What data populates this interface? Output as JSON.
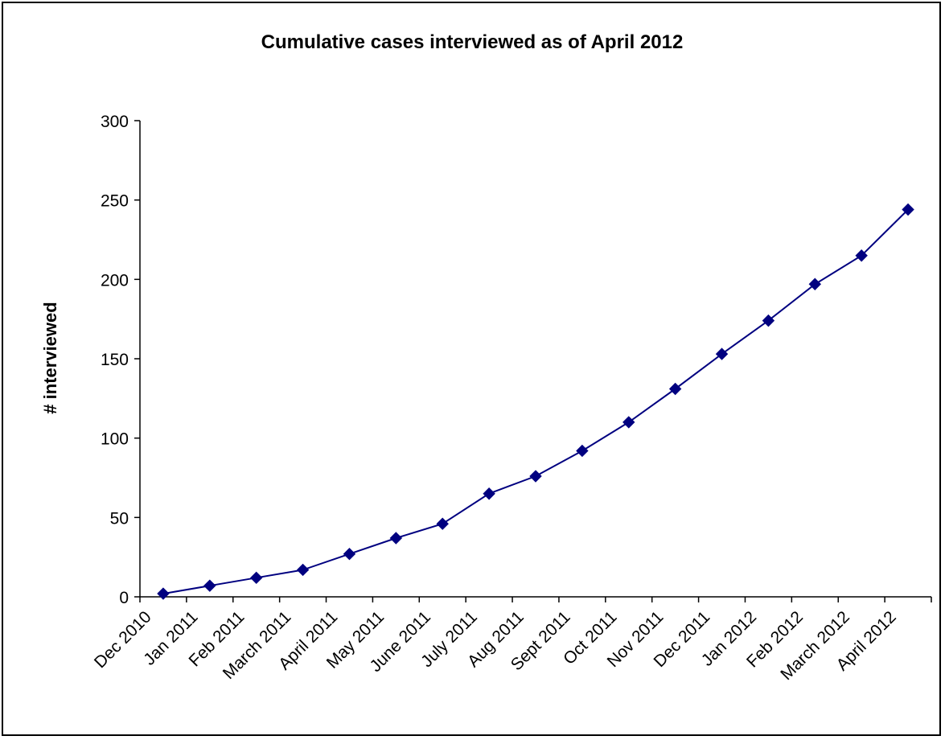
{
  "chart_data": {
    "type": "line",
    "title": "Cumulative cases interviewed as of April 2012",
    "xlabel": "",
    "ylabel": "# interviewed",
    "ylim": [
      0,
      300
    ],
    "yticks": [
      0,
      50,
      100,
      150,
      200,
      250,
      300
    ],
    "grid": false,
    "legend": "none",
    "categories": [
      "Dec 2010",
      "Jan 2011",
      "Feb 2011",
      "March 2011",
      "April 2011",
      "May 2011",
      "June 2011",
      "July 2011",
      "Aug 2011",
      "Sept 2011",
      "Oct 2011",
      "Nov 2011",
      "Dec 2011",
      "Jan 2012",
      "Feb 2012",
      "March 2012",
      "April 2012"
    ],
    "series": [
      {
        "values": [
          2,
          7,
          12,
          17,
          27,
          37,
          46,
          65,
          76,
          92,
          110,
          131,
          153,
          174,
          197,
          215,
          244
        ],
        "color": "#000080",
        "marker": "diamond"
      }
    ]
  }
}
